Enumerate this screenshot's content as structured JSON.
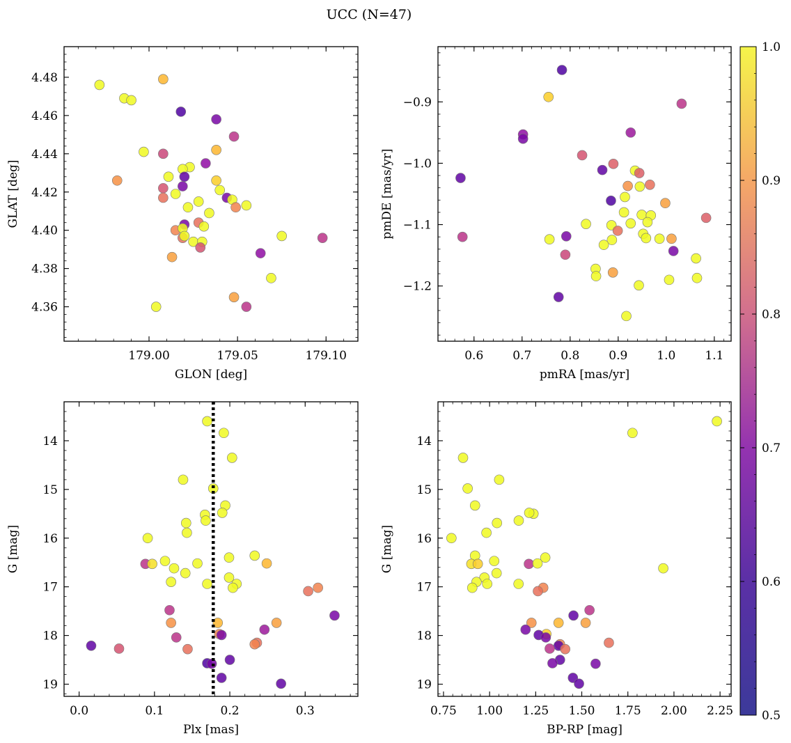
{
  "figure": {
    "title": "UCC (N=47)"
  },
  "colorbar": {
    "range": [
      0.5,
      1.0
    ],
    "ticks": [
      0.5,
      0.6,
      0.7,
      0.8,
      0.9,
      1.0
    ],
    "tick_labels": [
      "0.5",
      "0.6",
      "0.7",
      "0.8",
      "0.9",
      "1.0"
    ],
    "colormap": "plasma"
  },
  "chart_data": [
    {
      "type": "scatter",
      "id": "glon-glat",
      "xlabel": "GLON [deg]",
      "ylabel": "GLAT [deg]",
      "xlim": [
        178.952,
        179.118
      ],
      "ylim": [
        4.342,
        4.496
      ],
      "xticks": [
        179.0,
        179.05,
        179.1
      ],
      "xtick_labels": [
        "179.00",
        "179.05",
        "179.10"
      ],
      "yticks": [
        4.36,
        4.38,
        4.4,
        4.42,
        4.44,
        4.46,
        4.48
      ],
      "ytick_labels": [
        "4.36",
        "4.38",
        "4.40",
        "4.42",
        "4.44",
        "4.46",
        "4.48"
      ],
      "y_inverted": false,
      "points": [
        {
          "x": 178.972,
          "y": 4.476,
          "c": 1.0
        },
        {
          "x": 178.986,
          "y": 4.469,
          "c": 0.95
        },
        {
          "x": 178.99,
          "y": 4.468,
          "c": 0.97
        },
        {
          "x": 179.008,
          "y": 4.479,
          "c": 0.85
        },
        {
          "x": 179.018,
          "y": 4.462,
          "c": 0.5
        },
        {
          "x": 179.038,
          "y": 4.458,
          "c": 0.55
        },
        {
          "x": 179.048,
          "y": 4.449,
          "c": 0.65
        },
        {
          "x": 178.997,
          "y": 4.441,
          "c": 0.97
        },
        {
          "x": 179.008,
          "y": 4.44,
          "c": 0.68
        },
        {
          "x": 179.038,
          "y": 4.442,
          "c": 0.85
        },
        {
          "x": 179.032,
          "y": 4.435,
          "c": 0.58
        },
        {
          "x": 179.023,
          "y": 4.433,
          "c": 0.97
        },
        {
          "x": 179.019,
          "y": 4.432,
          "c": 1.0
        },
        {
          "x": 179.02,
          "y": 4.428,
          "c": 0.52
        },
        {
          "x": 179.011,
          "y": 4.428,
          "c": 1.0
        },
        {
          "x": 178.982,
          "y": 4.426,
          "c": 0.8
        },
        {
          "x": 179.038,
          "y": 4.426,
          "c": 0.88
        },
        {
          "x": 179.008,
          "y": 4.422,
          "c": 0.7
        },
        {
          "x": 179.019,
          "y": 4.423,
          "c": 0.55
        },
        {
          "x": 179.04,
          "y": 4.421,
          "c": 1.0
        },
        {
          "x": 179.015,
          "y": 4.419,
          "c": 1.0
        },
        {
          "x": 179.008,
          "y": 4.417,
          "c": 0.75
        },
        {
          "x": 179.044,
          "y": 4.417,
          "c": 0.55
        },
        {
          "x": 179.047,
          "y": 4.416,
          "c": 0.97
        },
        {
          "x": 179.028,
          "y": 4.415,
          "c": 1.0
        },
        {
          "x": 179.022,
          "y": 4.412,
          "c": 1.0
        },
        {
          "x": 179.049,
          "y": 4.412,
          "c": 0.78
        },
        {
          "x": 179.055,
          "y": 4.413,
          "c": 1.0
        },
        {
          "x": 179.034,
          "y": 4.409,
          "c": 1.0
        },
        {
          "x": 179.02,
          "y": 4.403,
          "c": 0.55
        },
        {
          "x": 179.028,
          "y": 4.404,
          "c": 0.75
        },
        {
          "x": 179.031,
          "y": 4.402,
          "c": 1.0
        },
        {
          "x": 179.015,
          "y": 4.4,
          "c": 0.78
        },
        {
          "x": 179.019,
          "y": 4.401,
          "c": 1.0
        },
        {
          "x": 179.019,
          "y": 4.396,
          "c": 0.75
        },
        {
          "x": 179.02,
          "y": 4.397,
          "c": 1.0
        },
        {
          "x": 179.025,
          "y": 4.394,
          "c": 1.0
        },
        {
          "x": 179.03,
          "y": 4.394,
          "c": 1.0
        },
        {
          "x": 179.029,
          "y": 4.391,
          "c": 0.7
        },
        {
          "x": 179.013,
          "y": 4.386,
          "c": 0.82
        },
        {
          "x": 179.063,
          "y": 4.388,
          "c": 0.58
        },
        {
          "x": 179.075,
          "y": 4.397,
          "c": 1.0
        },
        {
          "x": 179.098,
          "y": 4.396,
          "c": 0.65
        },
        {
          "x": 179.069,
          "y": 4.375,
          "c": 1.0
        },
        {
          "x": 179.048,
          "y": 4.365,
          "c": 0.82
        },
        {
          "x": 179.055,
          "y": 4.36,
          "c": 0.65
        },
        {
          "x": 179.004,
          "y": 4.36,
          "c": 0.97
        }
      ]
    },
    {
      "type": "scatter",
      "id": "pmra-pmde",
      "xlabel": "pmRA [mas/yr]",
      "ylabel": "pmDE [mas/yr]",
      "xlim": [
        0.525,
        1.135
      ],
      "ylim": [
        -1.29,
        -0.81
      ],
      "xticks": [
        0.6,
        0.7,
        0.8,
        0.9,
        1.0,
        1.1
      ],
      "xtick_labels": [
        "0.6",
        "0.7",
        "0.8",
        "0.9",
        "1.0",
        "1.1"
      ],
      "yticks": [
        -1.2,
        -1.1,
        -1.0,
        -0.9
      ],
      "ytick_labels": [
        "−1.2",
        "−1.1",
        "−1.0",
        "−0.9"
      ],
      "y_inverted": false,
      "points": [
        {
          "x": 0.783,
          "y": -0.848,
          "c": 0.5
        },
        {
          "x": 0.755,
          "y": -0.892,
          "c": 0.88
        },
        {
          "x": 1.032,
          "y": -0.903,
          "c": 0.65
        },
        {
          "x": 0.702,
          "y": -0.953,
          "c": 0.58
        },
        {
          "x": 0.702,
          "y": -0.96,
          "c": 0.55
        },
        {
          "x": 0.926,
          "y": -0.95,
          "c": 0.6
        },
        {
          "x": 0.825,
          "y": -0.987,
          "c": 0.7
        },
        {
          "x": 0.89,
          "y": -1.001,
          "c": 0.72
        },
        {
          "x": 0.867,
          "y": -1.011,
          "c": 0.52
        },
        {
          "x": 0.935,
          "y": -1.012,
          "c": 0.95
        },
        {
          "x": 0.944,
          "y": -1.016,
          "c": 0.72
        },
        {
          "x": 0.572,
          "y": -1.024,
          "c": 0.52
        },
        {
          "x": 0.92,
          "y": -1.037,
          "c": 0.8
        },
        {
          "x": 0.945,
          "y": -1.038,
          "c": 1.0
        },
        {
          "x": 0.966,
          "y": -1.035,
          "c": 0.75
        },
        {
          "x": 0.885,
          "y": -1.061,
          "c": 0.5
        },
        {
          "x": 0.914,
          "y": -1.055,
          "c": 1.0
        },
        {
          "x": 0.998,
          "y": -1.065,
          "c": 0.82
        },
        {
          "x": 0.912,
          "y": -1.08,
          "c": 1.0
        },
        {
          "x": 0.949,
          "y": -1.084,
          "c": 1.0
        },
        {
          "x": 0.968,
          "y": -1.085,
          "c": 1.0
        },
        {
          "x": 1.083,
          "y": -1.089,
          "c": 0.72
        },
        {
          "x": 0.833,
          "y": -1.099,
          "c": 1.0
        },
        {
          "x": 0.886,
          "y": -1.101,
          "c": 1.0
        },
        {
          "x": 0.926,
          "y": -1.098,
          "c": 1.0
        },
        {
          "x": 0.899,
          "y": -1.11,
          "c": 0.75
        },
        {
          "x": 0.952,
          "y": -1.115,
          "c": 1.0
        },
        {
          "x": 0.576,
          "y": -1.12,
          "c": 0.65
        },
        {
          "x": 0.792,
          "y": -1.119,
          "c": 0.55
        },
        {
          "x": 0.757,
          "y": -1.124,
          "c": 0.95
        },
        {
          "x": 0.887,
          "y": -1.125,
          "c": 0.95
        },
        {
          "x": 0.958,
          "y": -1.122,
          "c": 1.0
        },
        {
          "x": 0.986,
          "y": -1.123,
          "c": 1.0
        },
        {
          "x": 1.011,
          "y": -1.123,
          "c": 0.82
        },
        {
          "x": 0.87,
          "y": -1.133,
          "c": 1.0
        },
        {
          "x": 1.015,
          "y": -1.143,
          "c": 0.55
        },
        {
          "x": 0.79,
          "y": -1.149,
          "c": 0.68
        },
        {
          "x": 1.062,
          "y": -1.155,
          "c": 1.0
        },
        {
          "x": 0.853,
          "y": -1.172,
          "c": 1.0
        },
        {
          "x": 0.854,
          "y": -1.184,
          "c": 1.0
        },
        {
          "x": 0.889,
          "y": -1.178,
          "c": 0.82
        },
        {
          "x": 1.064,
          "y": -1.187,
          "c": 0.95
        },
        {
          "x": 1.006,
          "y": -1.19,
          "c": 1.0
        },
        {
          "x": 0.943,
          "y": -1.199,
          "c": 0.97
        },
        {
          "x": 0.776,
          "y": -1.218,
          "c": 0.52
        },
        {
          "x": 0.917,
          "y": -1.249,
          "c": 0.97
        },
        {
          "x": 0.961,
          "y": -1.096,
          "c": 1.0
        }
      ]
    },
    {
      "type": "scatter",
      "id": "plx-g",
      "xlabel": "Plx [mas]",
      "ylabel": "G [mag]",
      "xlim": [
        -0.02,
        0.37
      ],
      "ylim": [
        19.25,
        13.2
      ],
      "xticks": [
        0.0,
        0.1,
        0.2,
        0.3
      ],
      "xtick_labels": [
        "0.0",
        "0.1",
        "0.2",
        "0.3"
      ],
      "yticks": [
        14,
        15,
        16,
        17,
        18,
        19
      ],
      "ytick_labels": [
        "14",
        "15",
        "16",
        "17",
        "18",
        "19"
      ],
      "y_inverted": true,
      "vline": 0.178,
      "points": [
        {
          "x": 0.17,
          "y": 13.6,
          "c": 1.0
        },
        {
          "x": 0.192,
          "y": 13.84,
          "c": 1.0
        },
        {
          "x": 0.203,
          "y": 14.35,
          "c": 1.0
        },
        {
          "x": 0.138,
          "y": 14.8,
          "c": 1.0
        },
        {
          "x": 0.178,
          "y": 14.98,
          "c": 1.0
        },
        {
          "x": 0.194,
          "y": 15.33,
          "c": 1.0
        },
        {
          "x": 0.19,
          "y": 15.48,
          "c": 1.0
        },
        {
          "x": 0.167,
          "y": 15.52,
          "c": 1.0
        },
        {
          "x": 0.168,
          "y": 15.64,
          "c": 1.0
        },
        {
          "x": 0.142,
          "y": 15.69,
          "c": 1.0
        },
        {
          "x": 0.143,
          "y": 15.89,
          "c": 1.0
        },
        {
          "x": 0.091,
          "y": 16.0,
          "c": 1.0
        },
        {
          "x": 0.233,
          "y": 16.36,
          "c": 0.95
        },
        {
          "x": 0.199,
          "y": 16.4,
          "c": 1.0
        },
        {
          "x": 0.114,
          "y": 16.47,
          "c": 0.97
        },
        {
          "x": 0.088,
          "y": 16.53,
          "c": 0.65
        },
        {
          "x": 0.097,
          "y": 16.53,
          "c": 0.9
        },
        {
          "x": 0.157,
          "y": 16.52,
          "c": 1.0
        },
        {
          "x": 0.249,
          "y": 16.52,
          "c": 0.85
        },
        {
          "x": 0.126,
          "y": 16.62,
          "c": 1.0
        },
        {
          "x": 0.141,
          "y": 16.72,
          "c": 1.0
        },
        {
          "x": 0.199,
          "y": 16.81,
          "c": 1.0
        },
        {
          "x": 0.122,
          "y": 16.9,
          "c": 0.95
        },
        {
          "x": 0.17,
          "y": 16.94,
          "c": 0.97
        },
        {
          "x": 0.209,
          "y": 16.94,
          "c": 1.0
        },
        {
          "x": 0.204,
          "y": 17.02,
          "c": 1.0
        },
        {
          "x": 0.317,
          "y": 17.02,
          "c": 0.78
        },
        {
          "x": 0.304,
          "y": 17.09,
          "c": 0.75
        },
        {
          "x": 0.12,
          "y": 17.48,
          "c": 0.65
        },
        {
          "x": 0.339,
          "y": 17.59,
          "c": 0.55
        },
        {
          "x": 0.122,
          "y": 17.74,
          "c": 0.8
        },
        {
          "x": 0.184,
          "y": 17.74,
          "c": 0.85
        },
        {
          "x": 0.262,
          "y": 17.74,
          "c": 0.82
        },
        {
          "x": 0.246,
          "y": 17.88,
          "c": 0.6
        },
        {
          "x": 0.186,
          "y": 17.97,
          "c": 0.78
        },
        {
          "x": 0.189,
          "y": 17.99,
          "c": 0.55
        },
        {
          "x": 0.129,
          "y": 18.04,
          "c": 0.65
        },
        {
          "x": 0.236,
          "y": 18.15,
          "c": 0.75
        },
        {
          "x": 0.233,
          "y": 18.18,
          "c": 0.78
        },
        {
          "x": 0.016,
          "y": 18.21,
          "c": 0.52
        },
        {
          "x": 0.053,
          "y": 18.27,
          "c": 0.7
        },
        {
          "x": 0.144,
          "y": 18.28,
          "c": 0.75
        },
        {
          "x": 0.2,
          "y": 18.5,
          "c": 0.52
        },
        {
          "x": 0.17,
          "y": 18.57,
          "c": 0.5
        },
        {
          "x": 0.176,
          "y": 18.58,
          "c": 0.55
        },
        {
          "x": 0.189,
          "y": 18.87,
          "c": 0.52
        },
        {
          "x": 0.268,
          "y": 18.99,
          "c": 0.52
        }
      ]
    },
    {
      "type": "scatter",
      "id": "bprp-g",
      "xlabel": "BP-RP [mag]",
      "ylabel": "G [mag]",
      "xlim": [
        0.72,
        2.31
      ],
      "ylim": [
        19.25,
        13.2
      ],
      "xticks": [
        0.75,
        1.0,
        1.25,
        1.5,
        1.75,
        2.0,
        2.25
      ],
      "xtick_labels": [
        "0.75",
        "1.00",
        "1.25",
        "1.50",
        "1.75",
        "2.00",
        "2.25"
      ],
      "yticks": [
        14,
        15,
        16,
        17,
        18,
        19
      ],
      "ytick_labels": [
        "14",
        "15",
        "16",
        "17",
        "18",
        "19"
      ],
      "y_inverted": true,
      "points": [
        {
          "x": 2.233,
          "y": 13.6,
          "c": 1.0
        },
        {
          "x": 1.775,
          "y": 13.84,
          "c": 1.0
        },
        {
          "x": 0.856,
          "y": 14.35,
          "c": 1.0
        },
        {
          "x": 1.052,
          "y": 14.8,
          "c": 1.0
        },
        {
          "x": 0.881,
          "y": 14.98,
          "c": 1.0
        },
        {
          "x": 0.921,
          "y": 15.33,
          "c": 1.0
        },
        {
          "x": 1.238,
          "y": 15.5,
          "c": 1.0
        },
        {
          "x": 1.215,
          "y": 15.48,
          "c": 1.0
        },
        {
          "x": 1.158,
          "y": 15.64,
          "c": 1.0
        },
        {
          "x": 1.04,
          "y": 15.69,
          "c": 1.0
        },
        {
          "x": 0.983,
          "y": 15.89,
          "c": 1.0
        },
        {
          "x": 0.793,
          "y": 16.0,
          "c": 1.0
        },
        {
          "x": 0.921,
          "y": 16.36,
          "c": 0.95
        },
        {
          "x": 1.302,
          "y": 16.4,
          "c": 1.0
        },
        {
          "x": 1.025,
          "y": 16.47,
          "c": 0.97
        },
        {
          "x": 0.901,
          "y": 16.53,
          "c": 0.9
        },
        {
          "x": 0.936,
          "y": 16.53,
          "c": 0.88
        },
        {
          "x": 1.213,
          "y": 16.53,
          "c": 0.65
        },
        {
          "x": 1.26,
          "y": 16.52,
          "c": 1.0
        },
        {
          "x": 1.942,
          "y": 16.62,
          "c": 0.97
        },
        {
          "x": 1.038,
          "y": 16.72,
          "c": 1.0
        },
        {
          "x": 0.972,
          "y": 16.81,
          "c": 1.0
        },
        {
          "x": 0.929,
          "y": 16.9,
          "c": 0.95
        },
        {
          "x": 0.987,
          "y": 16.94,
          "c": 1.0
        },
        {
          "x": 1.157,
          "y": 16.94,
          "c": 0.97
        },
        {
          "x": 0.906,
          "y": 17.02,
          "c": 0.97
        },
        {
          "x": 1.291,
          "y": 17.02,
          "c": 0.78
        },
        {
          "x": 1.262,
          "y": 17.09,
          "c": 0.75
        },
        {
          "x": 1.542,
          "y": 17.48,
          "c": 0.65
        },
        {
          "x": 1.455,
          "y": 17.59,
          "c": 0.52
        },
        {
          "x": 1.227,
          "y": 17.74,
          "c": 0.8
        },
        {
          "x": 1.374,
          "y": 17.74,
          "c": 0.85
        },
        {
          "x": 1.521,
          "y": 17.74,
          "c": 0.82
        },
        {
          "x": 1.195,
          "y": 17.88,
          "c": 0.55
        },
        {
          "x": 1.308,
          "y": 17.97,
          "c": 0.88
        },
        {
          "x": 1.266,
          "y": 17.99,
          "c": 0.52
        },
        {
          "x": 1.305,
          "y": 18.04,
          "c": 0.55
        },
        {
          "x": 1.647,
          "y": 18.15,
          "c": 0.75
        },
        {
          "x": 1.382,
          "y": 18.18,
          "c": 0.78
        },
        {
          "x": 1.374,
          "y": 18.21,
          "c": 0.52
        },
        {
          "x": 1.326,
          "y": 18.27,
          "c": 0.65
        },
        {
          "x": 1.41,
          "y": 18.28,
          "c": 0.75
        },
        {
          "x": 1.382,
          "y": 18.5,
          "c": 0.52
        },
        {
          "x": 1.341,
          "y": 18.57,
          "c": 0.55
        },
        {
          "x": 1.575,
          "y": 18.58,
          "c": 0.55
        },
        {
          "x": 1.452,
          "y": 18.87,
          "c": 0.52
        },
        {
          "x": 1.485,
          "y": 18.99,
          "c": 0.52
        }
      ]
    }
  ]
}
